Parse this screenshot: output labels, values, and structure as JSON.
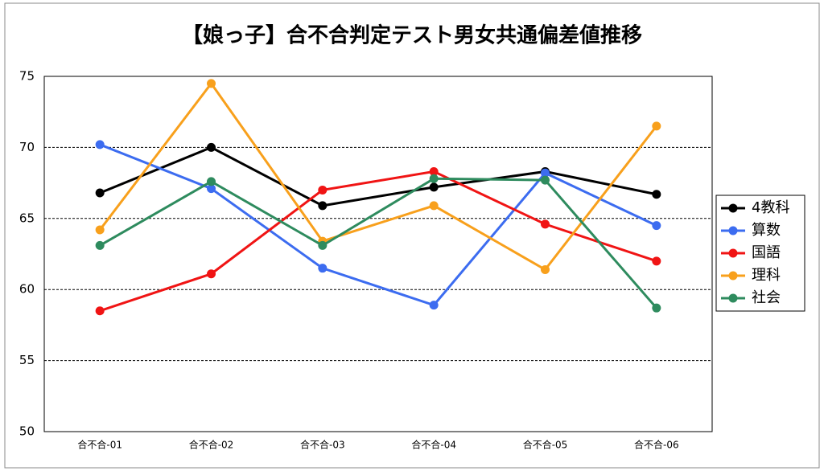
{
  "chart_data": {
    "type": "line",
    "title": "【娘っ子】合不合判定テスト男女共通偏差値推移",
    "categories": [
      "合不合-01",
      "合不合-02",
      "合不合-03",
      "合不合-04",
      "合不合-05",
      "合不合-06"
    ],
    "series": [
      {
        "name": "4教科",
        "color": "#000000",
        "values": [
          66.8,
          70.0,
          65.9,
          67.2,
          68.3,
          66.7
        ]
      },
      {
        "name": "算数",
        "color": "#3c6cf0",
        "values": [
          70.2,
          67.1,
          61.5,
          58.9,
          68.2,
          64.5
        ]
      },
      {
        "name": "国語",
        "color": "#f01414",
        "values": [
          58.5,
          61.1,
          67.0,
          68.3,
          64.6,
          62.0
        ]
      },
      {
        "name": "理科",
        "color": "#f8a01c",
        "values": [
          64.2,
          74.5,
          63.4,
          65.9,
          61.4,
          71.5
        ]
      },
      {
        "name": "社会",
        "color": "#2e8b5e",
        "values": [
          63.1,
          67.6,
          63.1,
          67.8,
          67.7,
          58.7
        ]
      }
    ],
    "ylim": [
      50,
      75
    ],
    "yticks": [
      50,
      55,
      60,
      65,
      70,
      75
    ],
    "grid": true,
    "legend": "right"
  }
}
